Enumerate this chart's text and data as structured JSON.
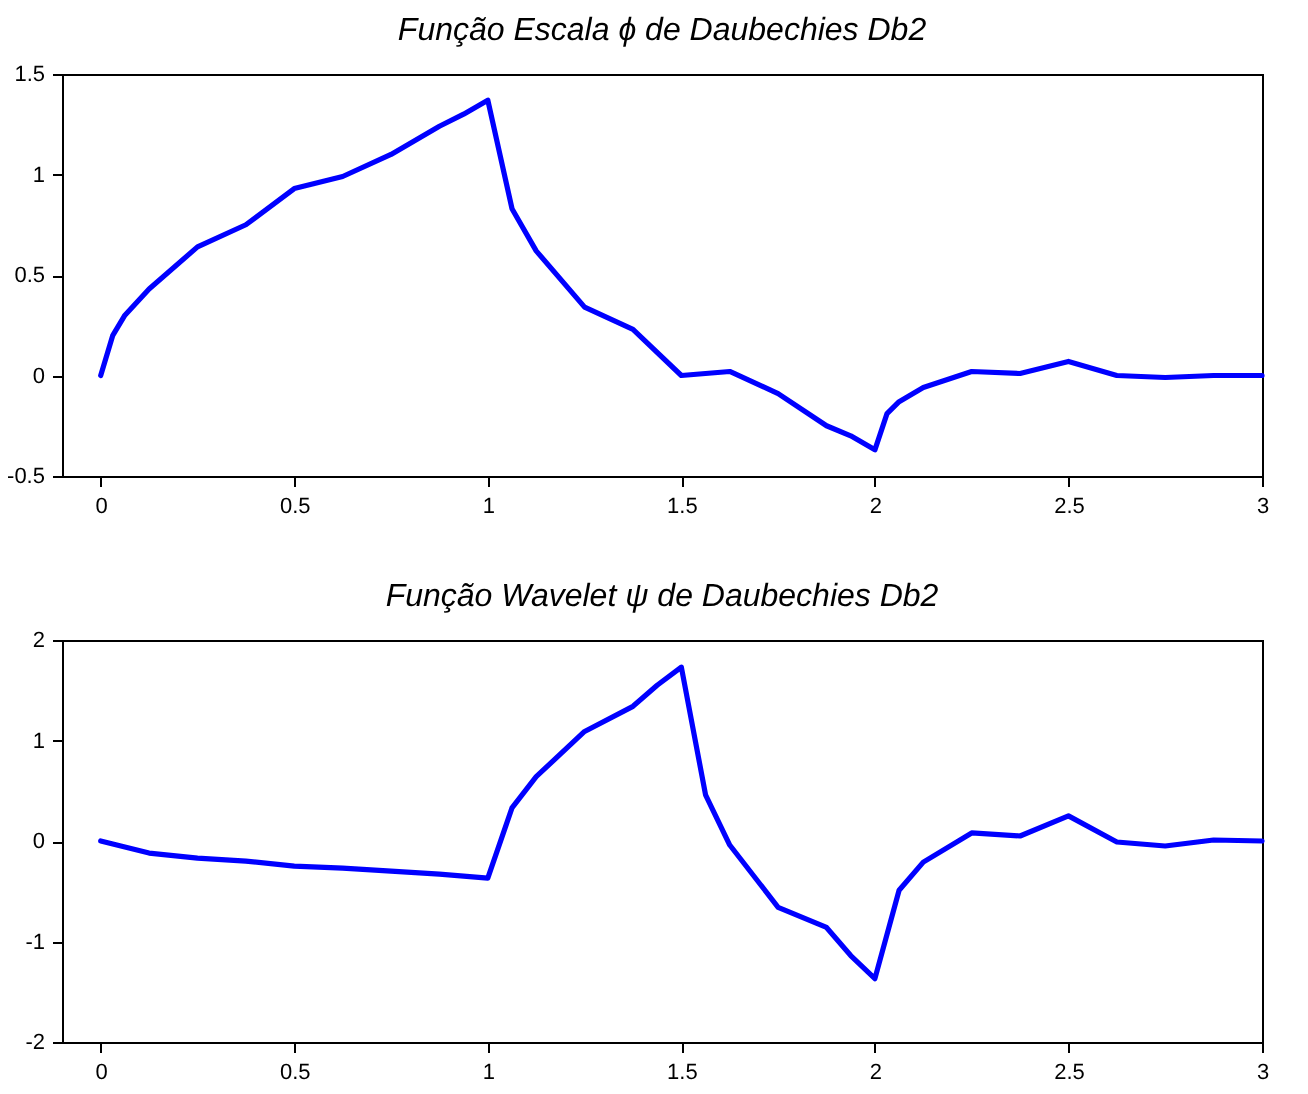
{
  "chart_data": [
    {
      "type": "line",
      "title": "Função Escala ϕ de Daubechies Db2",
      "grid": false,
      "line_style": "solid",
      "marker": "none",
      "xlim": [
        -0.1,
        3
      ],
      "xticks": [
        0,
        0.5,
        1,
        1.5,
        2,
        2.5,
        3
      ],
      "ylim": [
        -0.5,
        1.5
      ],
      "yticks": [
        -0.5,
        0,
        0.5,
        1,
        1.5
      ],
      "series": [
        {
          "color": "#0000ff",
          "x": [
            0,
            0.03125,
            0.0625,
            0.125,
            0.25,
            0.375,
            0.5,
            0.625,
            0.75,
            0.875,
            0.9375,
            1,
            1.0625,
            1.125,
            1.25,
            1.375,
            1.5,
            1.625,
            1.75,
            1.875,
            1.9375,
            2,
            2.03125,
            2.0625,
            2.125,
            2.25,
            2.375,
            2.5,
            2.625,
            2.75,
            2.875,
            3
          ],
          "values": [
            0,
            0.2,
            0.3,
            0.43,
            0.64,
            0.75,
            0.93,
            0.99,
            1.1,
            1.24,
            1.3,
            1.37,
            0.83,
            0.62,
            0.34,
            0.23,
            0,
            0.02,
            -0.09,
            -0.25,
            -0.3,
            -0.37,
            -0.19,
            -0.13,
            -0.06,
            0.02,
            0.01,
            0.07,
            0,
            -0.01,
            0,
            0
          ]
        }
      ]
    },
    {
      "type": "line",
      "title": "Função Wavelet ψ de Daubechies Db2",
      "grid": false,
      "line_style": "solid",
      "marker": "none",
      "xlim": [
        -0.1,
        3
      ],
      "xticks": [
        0,
        0.5,
        1,
        1.5,
        2,
        2.5,
        3
      ],
      "ylim": [
        -2,
        2
      ],
      "yticks": [
        -2,
        -1,
        0,
        1,
        2
      ],
      "series": [
        {
          "color": "#0000ff",
          "x": [
            0,
            0.125,
            0.25,
            0.375,
            0.5,
            0.625,
            0.75,
            0.875,
            1,
            1.0625,
            1.125,
            1.25,
            1.375,
            1.4375,
            1.5,
            1.5625,
            1.625,
            1.75,
            1.875,
            1.9375,
            2,
            2.0625,
            2.125,
            2.25,
            2.375,
            2.5,
            2.625,
            2.75,
            2.875,
            3
          ],
          "values": [
            0,
            -0.12,
            -0.17,
            -0.2,
            -0.25,
            -0.27,
            -0.3,
            -0.33,
            -0.37,
            0.33,
            0.64,
            1.09,
            1.34,
            1.55,
            1.73,
            0.46,
            -0.04,
            -0.66,
            -0.86,
            -1.14,
            -1.37,
            -0.49,
            -0.21,
            0.08,
            0.05,
            0.25,
            -0.01,
            -0.05,
            0.01,
            0
          ]
        }
      ]
    }
  ]
}
